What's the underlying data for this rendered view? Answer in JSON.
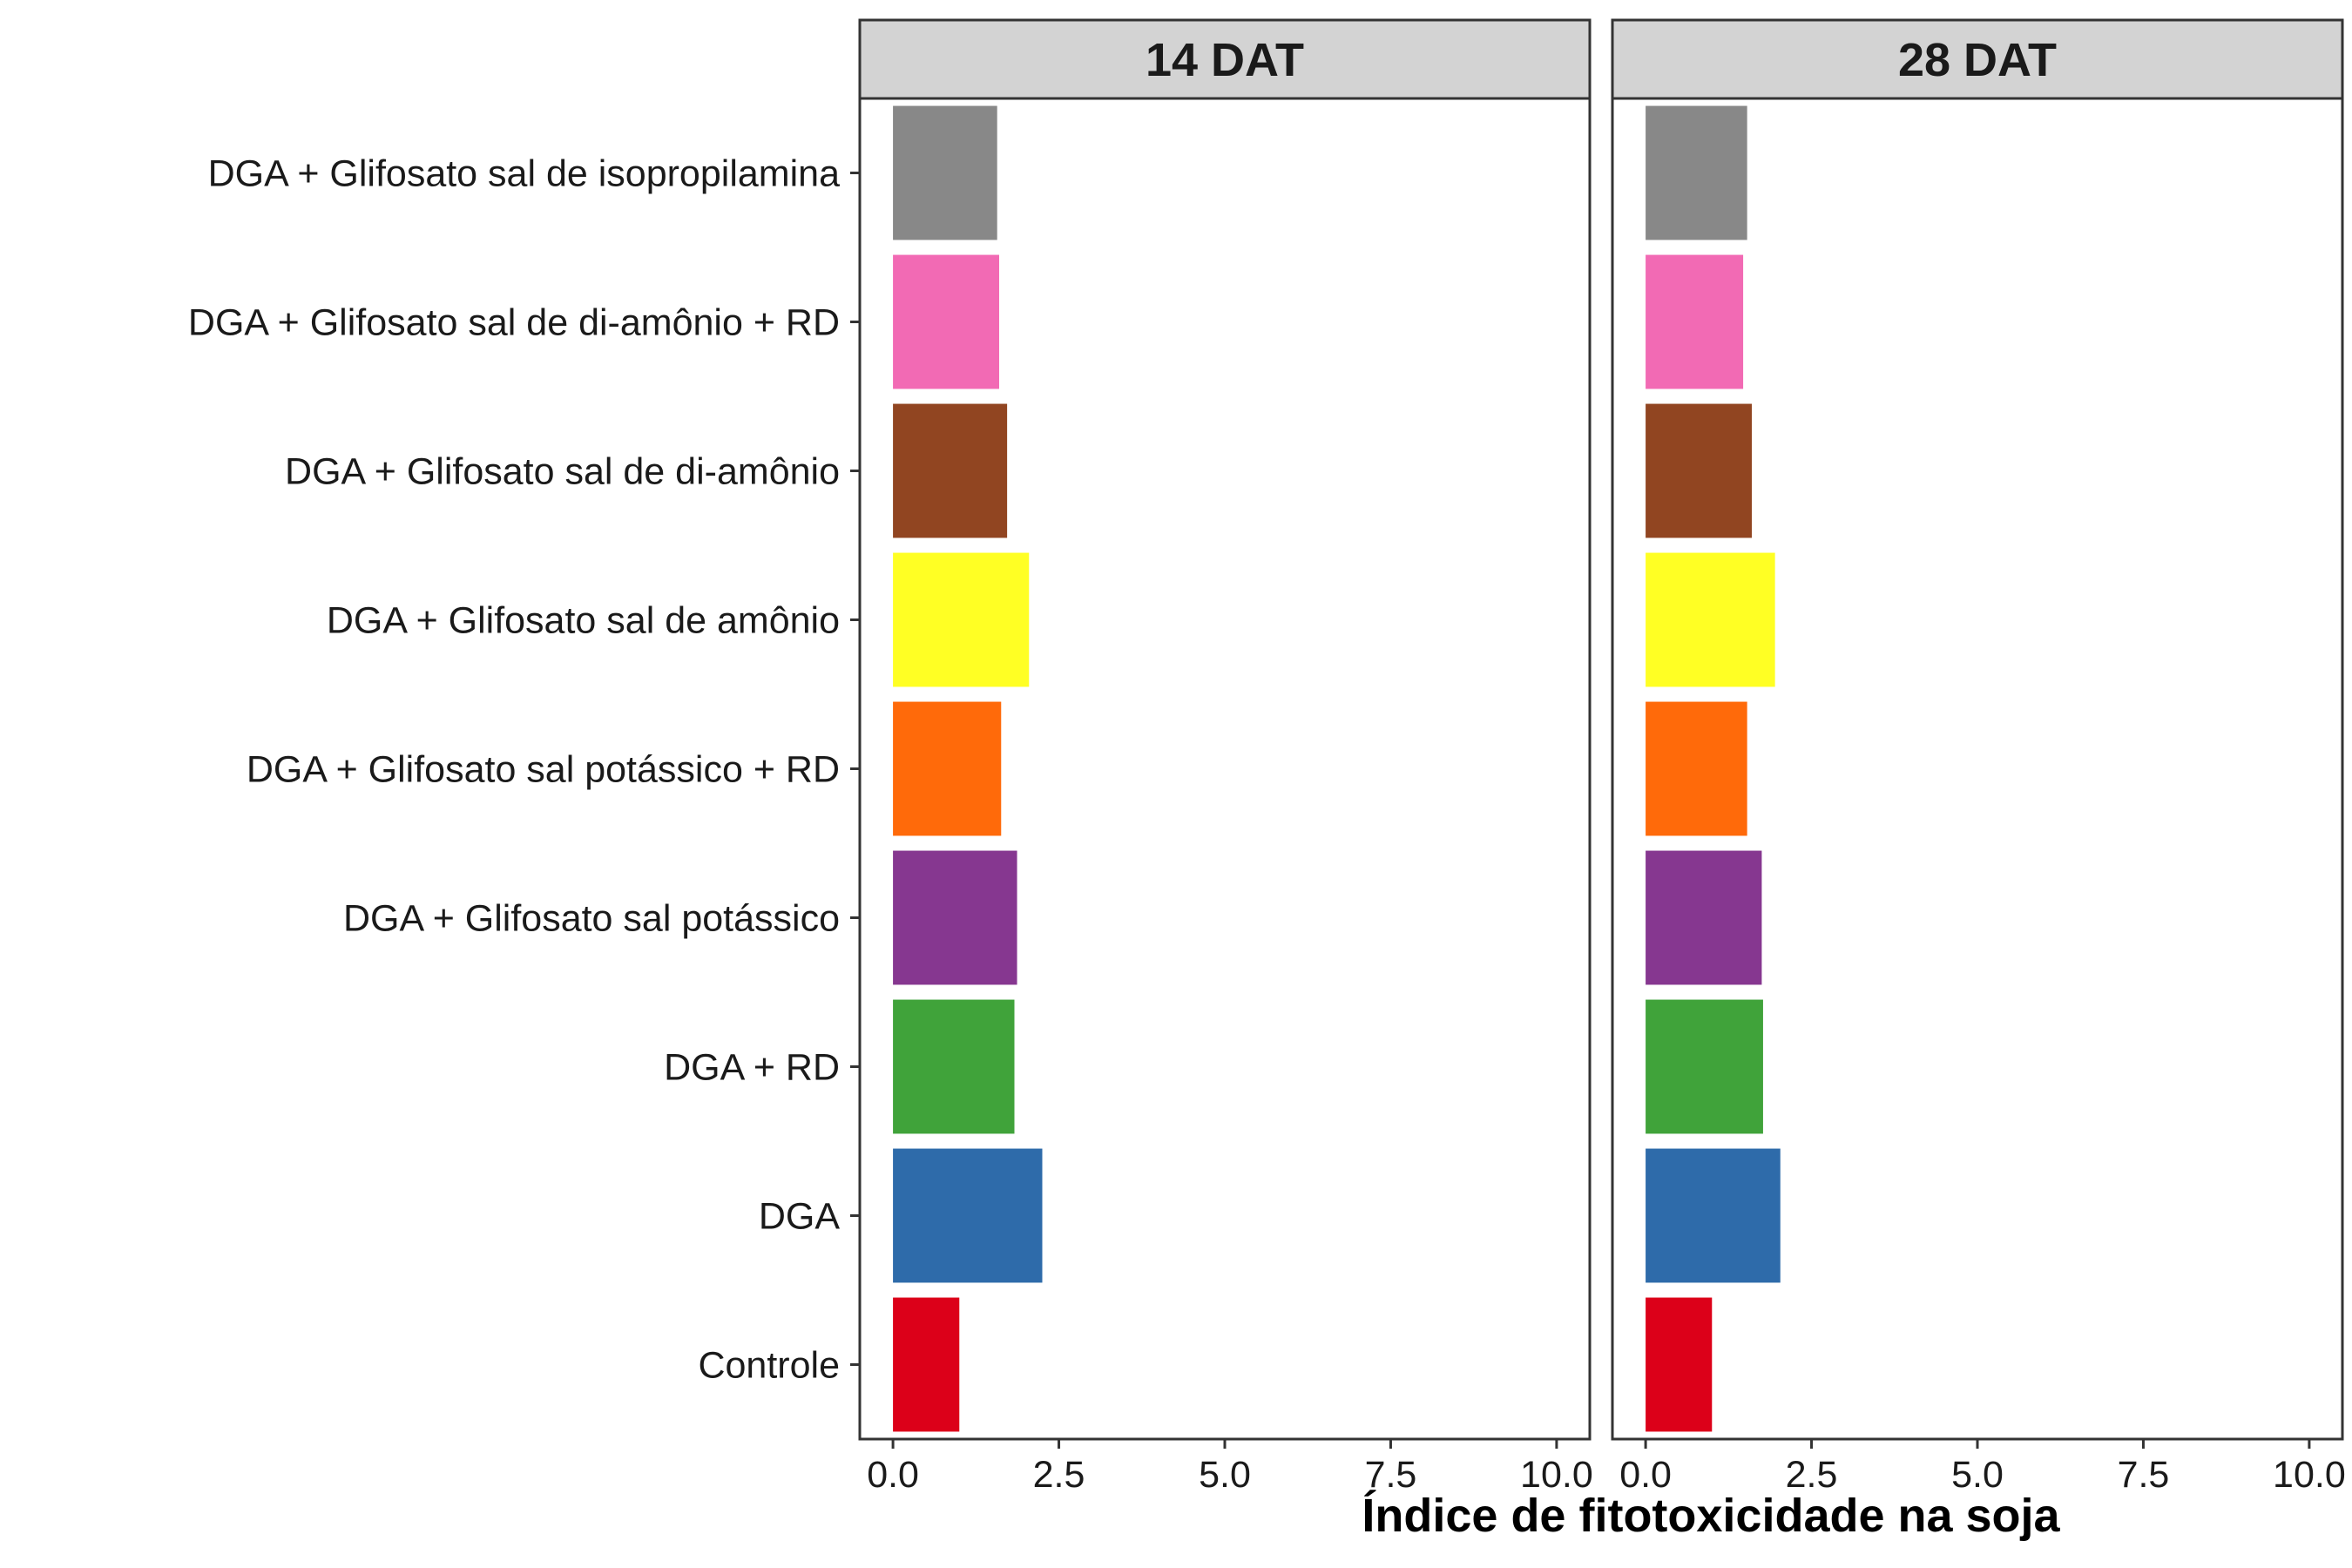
{
  "chart_data": {
    "type": "bar",
    "orientation": "horizontal",
    "categories": [
      "Controle",
      "DGA",
      "DGA + RD",
      "DGA + Glifosato sal potássico",
      "DGA + Glifosato sal potássico + RD",
      "DGA + Glifosato sal de amônio",
      "DGA + Glifosato sal de di-amônio",
      "DGA + Glifosato sal de di-amônio + RD",
      "DGA + Glifosato sal de isopropilamina"
    ],
    "colors": [
      "#DC0019",
      "#2E6BAA",
      "#40A33A",
      "#863790",
      "#FF6A0A",
      "#FFFF24",
      "#914521",
      "#F26AB4",
      "#888888"
    ],
    "panels": [
      {
        "title": "14 DAT",
        "values": [
          1.0,
          2.25,
          1.83,
          1.87,
          1.63,
          2.05,
          1.72,
          1.6,
          1.57
        ]
      },
      {
        "title": "28 DAT",
        "values": [
          1.0,
          2.03,
          1.77,
          1.75,
          1.53,
          1.95,
          1.6,
          1.47,
          1.53
        ]
      }
    ],
    "xlabel": "Índice de fitotoxicidade na soja",
    "xlim": [
      -0.5,
      10.5
    ],
    "xticks": [
      "0.0",
      "2.5",
      "5.0",
      "7.5",
      "10.0"
    ],
    "grid": false,
    "legend": "none"
  }
}
